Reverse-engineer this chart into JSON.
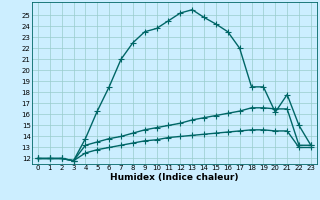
{
  "title": "",
  "xlabel": "Humidex (Indice chaleur)",
  "bg_color": "#cceeff",
  "line_color": "#006666",
  "grid_color": "#99cccc",
  "xlim": [
    -0.5,
    23.5
  ],
  "ylim": [
    11.5,
    26.2
  ],
  "xticks": [
    0,
    1,
    2,
    3,
    4,
    5,
    6,
    7,
    8,
    9,
    10,
    11,
    12,
    13,
    14,
    15,
    16,
    17,
    18,
    19,
    20,
    21,
    22,
    23
  ],
  "yticks": [
    12,
    13,
    14,
    15,
    16,
    17,
    18,
    19,
    20,
    21,
    22,
    23,
    24,
    25
  ],
  "series1_x": [
    0,
    1,
    2,
    3,
    4,
    5,
    6,
    7,
    8,
    9,
    10,
    11,
    12,
    13,
    14,
    15,
    16,
    17,
    18,
    19,
    20,
    21,
    22,
    23
  ],
  "series1_y": [
    12,
    12,
    12,
    11.8,
    13.8,
    16.3,
    18.5,
    21.0,
    22.5,
    23.5,
    23.8,
    24.5,
    25.2,
    25.5,
    24.8,
    24.2,
    23.5,
    22.0,
    18.5,
    18.5,
    16.2,
    17.8,
    15.0,
    13.2
  ],
  "series2_x": [
    0,
    1,
    2,
    3,
    4,
    5,
    6,
    7,
    8,
    9,
    10,
    11,
    12,
    13,
    14,
    15,
    16,
    17,
    18,
    19,
    20,
    21,
    22,
    23
  ],
  "series2_y": [
    12,
    12,
    12,
    11.8,
    13.2,
    13.5,
    13.8,
    14.0,
    14.3,
    14.6,
    14.8,
    15.0,
    15.2,
    15.5,
    15.7,
    15.9,
    16.1,
    16.3,
    16.6,
    16.6,
    16.5,
    16.5,
    13.2,
    13.2
  ],
  "series3_x": [
    0,
    1,
    2,
    3,
    4,
    5,
    6,
    7,
    8,
    9,
    10,
    11,
    12,
    13,
    14,
    15,
    16,
    17,
    18,
    19,
    20,
    21,
    22,
    23
  ],
  "series3_y": [
    12,
    12,
    12,
    11.8,
    12.5,
    12.8,
    13.0,
    13.2,
    13.4,
    13.6,
    13.7,
    13.9,
    14.0,
    14.1,
    14.2,
    14.3,
    14.4,
    14.5,
    14.6,
    14.6,
    14.5,
    14.5,
    13.0,
    13.0
  ],
  "marker": "+",
  "markersize": 4,
  "linewidth": 1.0
}
